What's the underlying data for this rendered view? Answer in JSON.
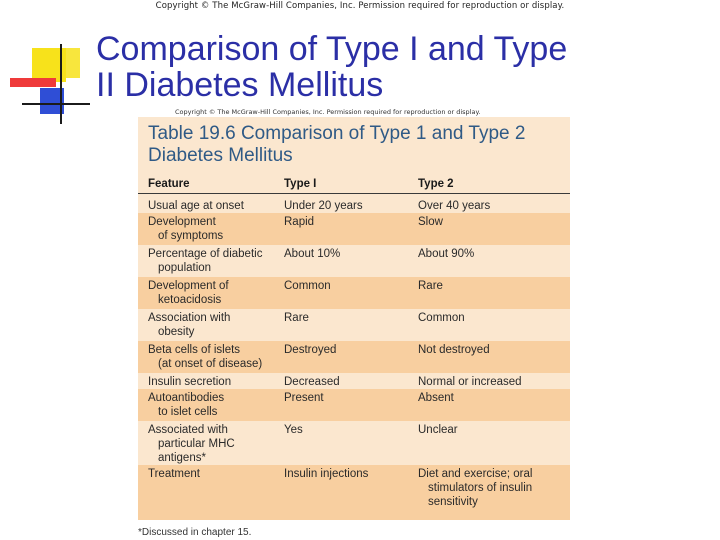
{
  "copyright_top": "Copyright © The McGraw-Hill Companies, Inc. Permission required for reproduction or display.",
  "title_line1": "Comparison of Type I and Type",
  "title_line2": "II Diabetes Mellitus",
  "copyright_image": "Copyright © The McGraw-Hill Companies, Inc. Permission required for reproduction or display.",
  "table": {
    "title_line1": "Table 19.6   Comparison of Type 1 and Type 2",
    "title_line2": "Diabetes Mellitus",
    "headers": [
      "Feature",
      "Type I",
      "Type 2"
    ],
    "rows": [
      {
        "feature": [
          "Usual age at onset"
        ],
        "type1": [
          "Under 20 years"
        ],
        "type2": [
          "Over 40 years"
        ]
      },
      {
        "feature": [
          "Development",
          "of symptoms"
        ],
        "type1": [
          "Rapid"
        ],
        "type2": [
          "Slow"
        ]
      },
      {
        "feature": [
          "Percentage of diabetic",
          "population"
        ],
        "type1": [
          "About 10%"
        ],
        "type2": [
          "About 90%"
        ]
      },
      {
        "feature": [
          "Development of",
          "ketoacidosis"
        ],
        "type1": [
          "Common"
        ],
        "type2": [
          "Rare"
        ]
      },
      {
        "feature": [
          "Association with",
          "obesity"
        ],
        "type1": [
          "Rare"
        ],
        "type2": [
          "Common"
        ]
      },
      {
        "feature": [
          "Beta cells of islets",
          "(at onset of disease)"
        ],
        "type1": [
          "Destroyed"
        ],
        "type2": [
          "Not destroyed"
        ]
      },
      {
        "feature": [
          "Insulin secretion"
        ],
        "type1": [
          "Decreased"
        ],
        "type2": [
          "Normal or increased"
        ]
      },
      {
        "feature": [
          "Autoantibodies",
          "to islet cells"
        ],
        "type1": [
          "Present"
        ],
        "type2": [
          "Absent"
        ]
      },
      {
        "feature": [
          "Associated with",
          "particular MHC",
          "antigens*"
        ],
        "type1": [
          "Yes"
        ],
        "type2": [
          "Unclear"
        ]
      },
      {
        "feature": [
          "Treatment"
        ],
        "type1": [
          "Insulin injections"
        ],
        "type2": [
          "Diet and exercise; oral",
          "stimulators of insulin",
          "sensitivity"
        ]
      }
    ],
    "footnote": "*Discussed in chapter 15."
  },
  "colors": {
    "title": "#2b2fa6",
    "table_title": "#2f5a86",
    "panel_light": "#fbe7cf",
    "panel_band": "#f8cfa0"
  }
}
